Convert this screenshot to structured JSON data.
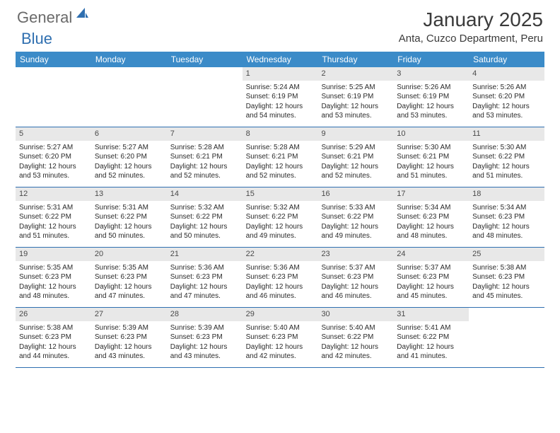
{
  "logo": {
    "part1": "General",
    "part2": "Blue"
  },
  "title": "January 2025",
  "location": "Anta, Cuzco Department, Peru",
  "colors": {
    "header_bg": "#3b8bc8",
    "header_text": "#ffffff",
    "daynum_bg": "#e8e8e8",
    "row_border": "#2f6fb0",
    "logo_gray": "#6a6a6a",
    "logo_blue": "#2f6fb0",
    "title_color": "#3a3a3a"
  },
  "day_names": [
    "Sunday",
    "Monday",
    "Tuesday",
    "Wednesday",
    "Thursday",
    "Friday",
    "Saturday"
  ],
  "layout": {
    "columns": 7,
    "rows": 5,
    "first_day_column_index": 3,
    "cell_fontsize": 10,
    "daynum_fontsize": 11,
    "header_fontsize": 12
  },
  "days": [
    {
      "n": 1,
      "sunrise": "5:24 AM",
      "sunset": "6:19 PM",
      "daylight": "12 hours and 54 minutes."
    },
    {
      "n": 2,
      "sunrise": "5:25 AM",
      "sunset": "6:19 PM",
      "daylight": "12 hours and 53 minutes."
    },
    {
      "n": 3,
      "sunrise": "5:26 AM",
      "sunset": "6:19 PM",
      "daylight": "12 hours and 53 minutes."
    },
    {
      "n": 4,
      "sunrise": "5:26 AM",
      "sunset": "6:20 PM",
      "daylight": "12 hours and 53 minutes."
    },
    {
      "n": 5,
      "sunrise": "5:27 AM",
      "sunset": "6:20 PM",
      "daylight": "12 hours and 53 minutes."
    },
    {
      "n": 6,
      "sunrise": "5:27 AM",
      "sunset": "6:20 PM",
      "daylight": "12 hours and 52 minutes."
    },
    {
      "n": 7,
      "sunrise": "5:28 AM",
      "sunset": "6:21 PM",
      "daylight": "12 hours and 52 minutes."
    },
    {
      "n": 8,
      "sunrise": "5:28 AM",
      "sunset": "6:21 PM",
      "daylight": "12 hours and 52 minutes."
    },
    {
      "n": 9,
      "sunrise": "5:29 AM",
      "sunset": "6:21 PM",
      "daylight": "12 hours and 52 minutes."
    },
    {
      "n": 10,
      "sunrise": "5:30 AM",
      "sunset": "6:21 PM",
      "daylight": "12 hours and 51 minutes."
    },
    {
      "n": 11,
      "sunrise": "5:30 AM",
      "sunset": "6:22 PM",
      "daylight": "12 hours and 51 minutes."
    },
    {
      "n": 12,
      "sunrise": "5:31 AM",
      "sunset": "6:22 PM",
      "daylight": "12 hours and 51 minutes."
    },
    {
      "n": 13,
      "sunrise": "5:31 AM",
      "sunset": "6:22 PM",
      "daylight": "12 hours and 50 minutes."
    },
    {
      "n": 14,
      "sunrise": "5:32 AM",
      "sunset": "6:22 PM",
      "daylight": "12 hours and 50 minutes."
    },
    {
      "n": 15,
      "sunrise": "5:32 AM",
      "sunset": "6:22 PM",
      "daylight": "12 hours and 49 minutes."
    },
    {
      "n": 16,
      "sunrise": "5:33 AM",
      "sunset": "6:22 PM",
      "daylight": "12 hours and 49 minutes."
    },
    {
      "n": 17,
      "sunrise": "5:34 AM",
      "sunset": "6:23 PM",
      "daylight": "12 hours and 48 minutes."
    },
    {
      "n": 18,
      "sunrise": "5:34 AM",
      "sunset": "6:23 PM",
      "daylight": "12 hours and 48 minutes."
    },
    {
      "n": 19,
      "sunrise": "5:35 AM",
      "sunset": "6:23 PM",
      "daylight": "12 hours and 48 minutes."
    },
    {
      "n": 20,
      "sunrise": "5:35 AM",
      "sunset": "6:23 PM",
      "daylight": "12 hours and 47 minutes."
    },
    {
      "n": 21,
      "sunrise": "5:36 AM",
      "sunset": "6:23 PM",
      "daylight": "12 hours and 47 minutes."
    },
    {
      "n": 22,
      "sunrise": "5:36 AM",
      "sunset": "6:23 PM",
      "daylight": "12 hours and 46 minutes."
    },
    {
      "n": 23,
      "sunrise": "5:37 AM",
      "sunset": "6:23 PM",
      "daylight": "12 hours and 46 minutes."
    },
    {
      "n": 24,
      "sunrise": "5:37 AM",
      "sunset": "6:23 PM",
      "daylight": "12 hours and 45 minutes."
    },
    {
      "n": 25,
      "sunrise": "5:38 AM",
      "sunset": "6:23 PM",
      "daylight": "12 hours and 45 minutes."
    },
    {
      "n": 26,
      "sunrise": "5:38 AM",
      "sunset": "6:23 PM",
      "daylight": "12 hours and 44 minutes."
    },
    {
      "n": 27,
      "sunrise": "5:39 AM",
      "sunset": "6:23 PM",
      "daylight": "12 hours and 43 minutes."
    },
    {
      "n": 28,
      "sunrise": "5:39 AM",
      "sunset": "6:23 PM",
      "daylight": "12 hours and 43 minutes."
    },
    {
      "n": 29,
      "sunrise": "5:40 AM",
      "sunset": "6:23 PM",
      "daylight": "12 hours and 42 minutes."
    },
    {
      "n": 30,
      "sunrise": "5:40 AM",
      "sunset": "6:22 PM",
      "daylight": "12 hours and 42 minutes."
    },
    {
      "n": 31,
      "sunrise": "5:41 AM",
      "sunset": "6:22 PM",
      "daylight": "12 hours and 41 minutes."
    }
  ],
  "labels": {
    "sunrise": "Sunrise:",
    "sunset": "Sunset:",
    "daylight": "Daylight:"
  }
}
